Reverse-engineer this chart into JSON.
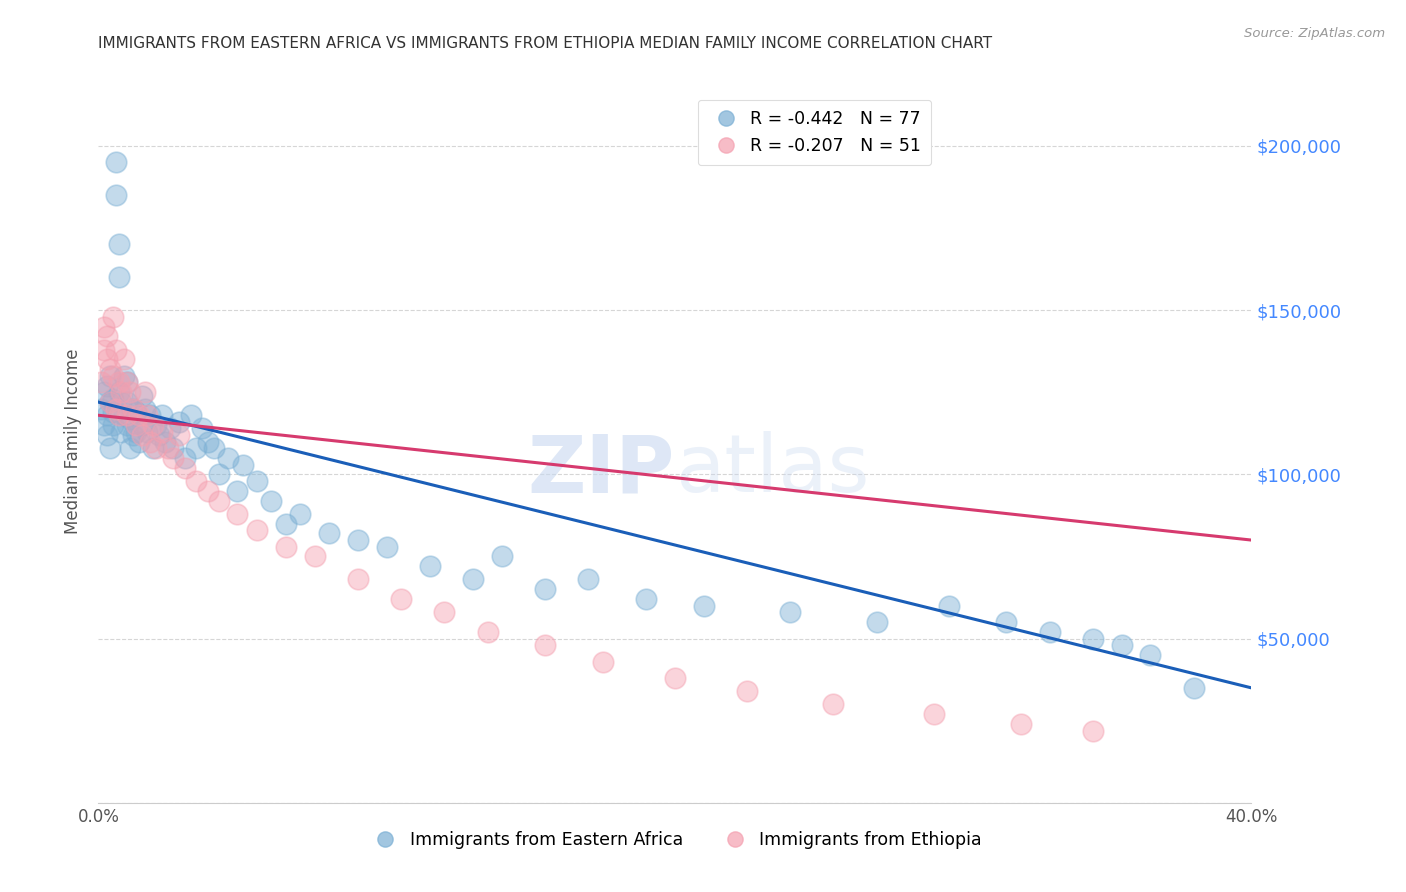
{
  "title": "IMMIGRANTS FROM EASTERN AFRICA VS IMMIGRANTS FROM ETHIOPIA MEDIAN FAMILY INCOME CORRELATION CHART",
  "source": "Source: ZipAtlas.com",
  "ylabel": "Median Family Income",
  "xlim": [
    0.0,
    0.4
  ],
  "ylim": [
    0,
    220000
  ],
  "watermark": "ZIPatlas",
  "series1_label": "Immigrants from Eastern Africa",
  "series1_color": "#7bafd4",
  "series1_line_color": "#1a5eb8",
  "series1_R": -0.442,
  "series1_N": 77,
  "series2_label": "Immigrants from Ethiopia",
  "series2_color": "#f4a0b0",
  "series2_line_color": "#d63a6e",
  "series2_R": -0.207,
  "series2_N": 51,
  "background_color": "#ffffff",
  "grid_color": "#cccccc",
  "title_color": "#333333",
  "right_tick_color": "#4488ff",
  "scatter1_x": [
    0.001,
    0.002,
    0.002,
    0.003,
    0.003,
    0.003,
    0.004,
    0.004,
    0.004,
    0.005,
    0.005,
    0.005,
    0.006,
    0.006,
    0.007,
    0.007,
    0.007,
    0.008,
    0.008,
    0.009,
    0.009,
    0.01,
    0.01,
    0.01,
    0.011,
    0.011,
    0.012,
    0.012,
    0.013,
    0.013,
    0.014,
    0.015,
    0.015,
    0.016,
    0.017,
    0.018,
    0.019,
    0.02,
    0.021,
    0.022,
    0.023,
    0.025,
    0.026,
    0.028,
    0.03,
    0.032,
    0.034,
    0.036,
    0.038,
    0.04,
    0.042,
    0.045,
    0.048,
    0.05,
    0.055,
    0.06,
    0.065,
    0.07,
    0.08,
    0.09,
    0.1,
    0.115,
    0.13,
    0.14,
    0.155,
    0.17,
    0.19,
    0.21,
    0.24,
    0.27,
    0.295,
    0.315,
    0.33,
    0.345,
    0.355,
    0.365,
    0.38
  ],
  "scatter1_y": [
    120000,
    115000,
    125000,
    118000,
    127000,
    112000,
    122000,
    108000,
    130000,
    119000,
    123000,
    115000,
    195000,
    185000,
    170000,
    160000,
    125000,
    113000,
    122000,
    118000,
    130000,
    128000,
    115000,
    122000,
    117000,
    108000,
    120000,
    112000,
    119000,
    113000,
    110000,
    124000,
    115000,
    120000,
    113000,
    118000,
    108000,
    115000,
    112000,
    118000,
    110000,
    114000,
    108000,
    116000,
    105000,
    118000,
    108000,
    114000,
    110000,
    108000,
    100000,
    105000,
    95000,
    103000,
    98000,
    92000,
    85000,
    88000,
    82000,
    80000,
    78000,
    72000,
    68000,
    75000,
    65000,
    68000,
    62000,
    60000,
    58000,
    55000,
    60000,
    55000,
    52000,
    50000,
    48000,
    45000,
    35000
  ],
  "scatter2_x": [
    0.001,
    0.002,
    0.002,
    0.003,
    0.003,
    0.004,
    0.004,
    0.005,
    0.005,
    0.006,
    0.006,
    0.007,
    0.007,
    0.008,
    0.009,
    0.01,
    0.01,
    0.011,
    0.012,
    0.013,
    0.014,
    0.015,
    0.016,
    0.017,
    0.018,
    0.019,
    0.02,
    0.022,
    0.024,
    0.026,
    0.028,
    0.03,
    0.034,
    0.038,
    0.042,
    0.048,
    0.055,
    0.065,
    0.075,
    0.09,
    0.105,
    0.12,
    0.135,
    0.155,
    0.175,
    0.2,
    0.225,
    0.255,
    0.29,
    0.32,
    0.345
  ],
  "scatter2_y": [
    128000,
    138000,
    145000,
    135000,
    142000,
    132000,
    122000,
    148000,
    130000,
    138000,
    120000,
    128000,
    118000,
    125000,
    135000,
    118000,
    128000,
    125000,
    120000,
    115000,
    118000,
    112000,
    125000,
    118000,
    110000,
    115000,
    108000,
    113000,
    108000,
    105000,
    112000,
    102000,
    98000,
    95000,
    92000,
    88000,
    83000,
    78000,
    75000,
    68000,
    62000,
    58000,
    52000,
    48000,
    43000,
    38000,
    34000,
    30000,
    27000,
    24000,
    22000
  ],
  "trendline1_x": [
    0.0,
    0.4
  ],
  "trendline1_y": [
    122000,
    35000
  ],
  "trendline2_x": [
    0.0,
    0.4
  ],
  "trendline2_y": [
    118000,
    80000
  ]
}
